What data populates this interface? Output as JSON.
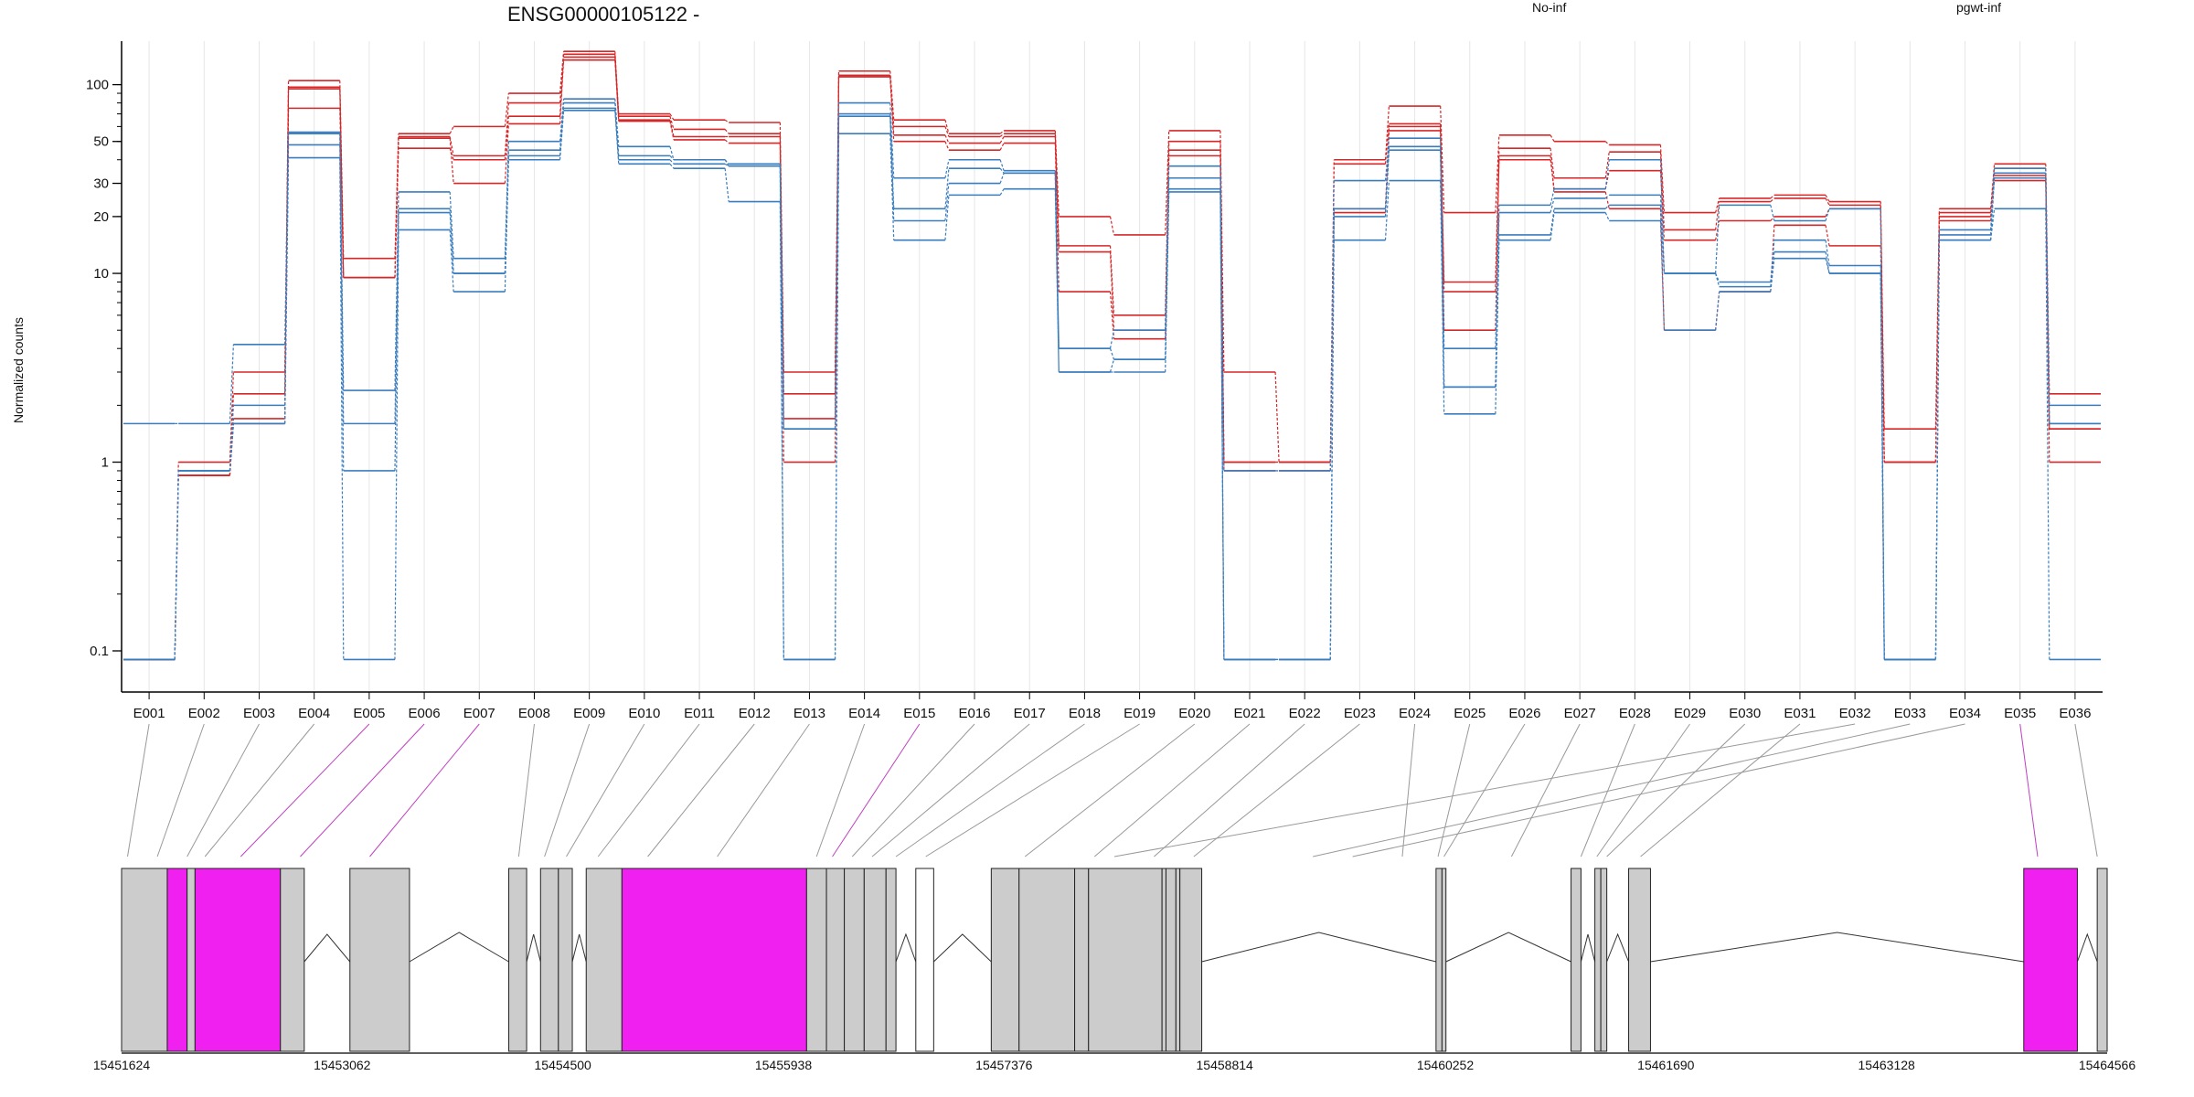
{
  "chart_data": {
    "type": "line",
    "title": "ENSG00000105122 -",
    "ylabel": "Normalized counts",
    "yscale": "log",
    "yticks": [
      0.1,
      1,
      10,
      20,
      30,
      50,
      100
    ],
    "ylim": [
      0.08,
      170
    ],
    "grid": "vertical",
    "legend": [
      {
        "name": "No-inf",
        "color": "#d62728"
      },
      {
        "name": "pgwt-inf",
        "color": "#3a7dbd"
      }
    ],
    "exons": [
      "E001",
      "E002",
      "E003",
      "E004",
      "E005",
      "E006",
      "E007",
      "E008",
      "E009",
      "E010",
      "E011",
      "E012",
      "E013",
      "E014",
      "E015",
      "E016",
      "E017",
      "E018",
      "E019",
      "E020",
      "E021",
      "E022",
      "E023",
      "E024",
      "E025",
      "E026",
      "E027",
      "E028",
      "E029",
      "E030",
      "E031",
      "E032",
      "E033",
      "E034",
      "E035",
      "E036"
    ],
    "series": [
      {
        "group": "No-inf",
        "values": [
          0.09,
          1.0,
          3.0,
          105,
          12,
          55,
          60,
          90,
          150,
          70,
          65,
          63,
          3.0,
          118,
          65,
          55,
          57,
          20,
          16,
          57,
          3.0,
          1.0,
          40,
          77,
          21,
          54,
          50,
          48,
          21,
          25,
          26,
          24,
          1.5,
          22,
          38,
          2.3
        ]
      },
      {
        "group": "No-inf",
        "values": [
          0.09,
          0.85,
          2.3,
          95,
          9.5,
          53,
          42,
          80,
          145,
          68,
          58,
          55,
          2.3,
          112,
          60,
          53,
          55,
          14,
          6.0,
          50,
          1.0,
          1.0,
          38,
          62,
          9.0,
          46,
          32,
          44,
          17,
          24,
          25,
          23,
          1.0,
          21,
          36,
          1.5
        ]
      },
      {
        "group": "No-inf",
        "values": [
          0.09,
          0.85,
          1.7,
          75,
          9.5,
          46,
          40,
          68,
          140,
          65,
          53,
          53,
          1.7,
          112,
          54,
          49,
          53,
          13,
          5.0,
          45,
          1.0,
          1.0,
          22,
          60,
          8.0,
          40,
          28,
          35,
          15,
          19,
          20,
          22,
          1.0,
          20,
          33,
          1.5
        ]
      },
      {
        "group": "No-inf",
        "values": [
          0.09,
          0.85,
          1.6,
          97,
          9.5,
          52,
          30,
          62,
          135,
          64,
          51,
          49,
          1.0,
          110,
          50,
          45,
          49,
          8.0,
          4.5,
          42,
          0.9,
          0.9,
          21,
          57,
          5.0,
          42,
          27,
          22,
          5.0,
          8.0,
          18,
          14,
          1.0,
          19,
          31,
          1.0
        ]
      },
      {
        "group": "pgwt-inf",
        "values": [
          1.6,
          1.6,
          4.2,
          55,
          2.4,
          27,
          12,
          50,
          84,
          47,
          40,
          38,
          1.5,
          80,
          32,
          40,
          35,
          4.0,
          5.0,
          37,
          0.9,
          0.9,
          31,
          52,
          4.0,
          23,
          28,
          40,
          10,
          23,
          19,
          22,
          0.09,
          17,
          36,
          2.0
        ]
      },
      {
        "group": "pgwt-inf",
        "values": [
          0.09,
          0.9,
          2.0,
          56,
          1.6,
          22,
          10,
          45,
          80,
          42,
          40,
          37,
          1.5,
          70,
          22,
          36,
          34,
          4.0,
          3.5,
          32,
          0.09,
          0.09,
          22,
          47,
          2.5,
          21,
          25,
          26,
          10,
          9.0,
          15,
          11,
          0.09,
          16,
          34,
          1.6
        ]
      },
      {
        "group": "pgwt-inf",
        "values": [
          0.09,
          0.9,
          1.6,
          48,
          0.9,
          21,
          10,
          42,
          75,
          40,
          38,
          37,
          0.09,
          68,
          19,
          30,
          34,
          3.0,
          3.5,
          28,
          0.09,
          0.09,
          20,
          45,
          2.5,
          16,
          22,
          23,
          10,
          8.5,
          13,
          10,
          0.09,
          15,
          32,
          1.6
        ]
      },
      {
        "group": "pgwt-inf",
        "values": [
          0.09,
          0.9,
          1.6,
          41,
          0.09,
          17,
          8.0,
          40,
          73,
          38,
          36,
          24,
          0.09,
          55,
          15,
          26,
          28,
          3.0,
          3.0,
          27,
          0.09,
          0.09,
          15,
          31,
          1.8,
          15,
          21,
          19,
          5.0,
          8.0,
          12,
          10,
          0.09,
          15,
          22,
          0.09
        ]
      }
    ],
    "gene_model": {
      "axis_ticks": [
        "15451624",
        "15453062",
        "15454500",
        "15455938",
        "15457376",
        "15458814",
        "15460252",
        "15461690",
        "15463128",
        "15464566"
      ]
    }
  }
}
